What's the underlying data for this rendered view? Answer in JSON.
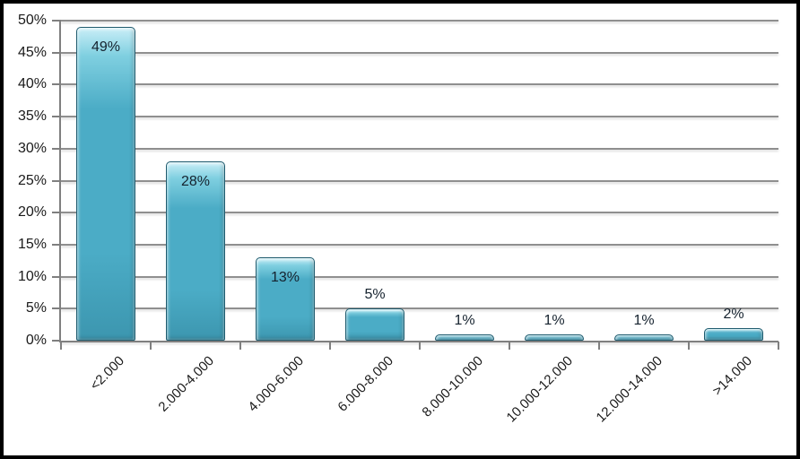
{
  "chart_data": {
    "type": "bar",
    "title": "",
    "xlabel": "",
    "ylabel": "",
    "categories": [
      "<2.000",
      "2.000-4.000",
      "4.000-6.000",
      "6.000-8.000",
      "8.000-10.000",
      "10.000-12.000",
      "12.000-14.000",
      ">14.000"
    ],
    "values": [
      49,
      28,
      13,
      5,
      1,
      1,
      1,
      2
    ],
    "bar_labels": [
      "49%",
      "28%",
      "13%",
      "5%",
      "1%",
      "1%",
      "1%",
      "2%"
    ],
    "ylim": [
      0,
      50
    ],
    "ytick_step": 5,
    "ytick_labels": [
      "0%",
      "5%",
      "10%",
      "15%",
      "20%",
      "25%",
      "30%",
      "35%",
      "40%",
      "45%",
      "50%"
    ],
    "grid": true,
    "legend": "none",
    "colors": {
      "bar_fill": "#4BACC6",
      "bar_highlight": "#C9EEF7",
      "bar_border": "#1F5B6E",
      "gridline": "#8F8F8F",
      "axis": "#7F7F7F",
      "data_label": "#15222E",
      "tick_label": "#1A1A1A",
      "frame_border": "#000000",
      "background": "#FFFFFF"
    }
  }
}
